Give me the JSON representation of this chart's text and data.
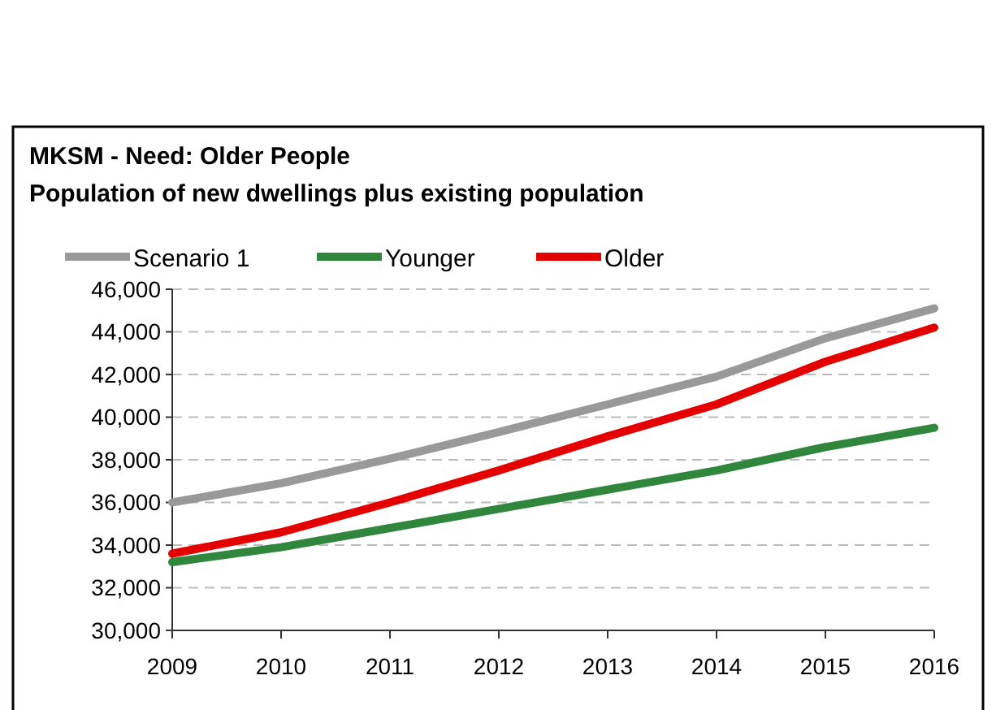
{
  "chart_data": {
    "type": "line",
    "title": "MKSM - Need: Older People",
    "subtitle": "Population of new dwellings plus existing population",
    "categories": [
      "2009",
      "2010",
      "2011",
      "2012",
      "2013",
      "2014",
      "2015",
      "2016"
    ],
    "series": [
      {
        "name": "Scenario 1",
        "color": "#999999",
        "values": [
          36000,
          36900,
          38050,
          39300,
          40600,
          41900,
          43700,
          45100
        ]
      },
      {
        "name": "Younger",
        "color": "#31863e",
        "values": [
          33200,
          33900,
          34800,
          35700,
          36600,
          37500,
          38600,
          39500
        ]
      },
      {
        "name": "Older",
        "color": "#e50000",
        "values": [
          33600,
          34600,
          36000,
          37500,
          39100,
          40600,
          42600,
          44200
        ]
      }
    ],
    "ylim": [
      30000,
      46000
    ],
    "yticks": [
      {
        "value": 30000,
        "label": "30,000"
      },
      {
        "value": 32000,
        "label": "32,000"
      },
      {
        "value": 34000,
        "label": "34,000"
      },
      {
        "value": 36000,
        "label": "36,000"
      },
      {
        "value": 38000,
        "label": "38,000"
      },
      {
        "value": 40000,
        "label": "40,000"
      },
      {
        "value": 42000,
        "label": "42,000"
      },
      {
        "value": 44000,
        "label": "44,000"
      },
      {
        "value": 46000,
        "label": "46,000"
      }
    ],
    "grid": "y",
    "legend": "top",
    "marker": "none",
    "line_style": "solid"
  }
}
